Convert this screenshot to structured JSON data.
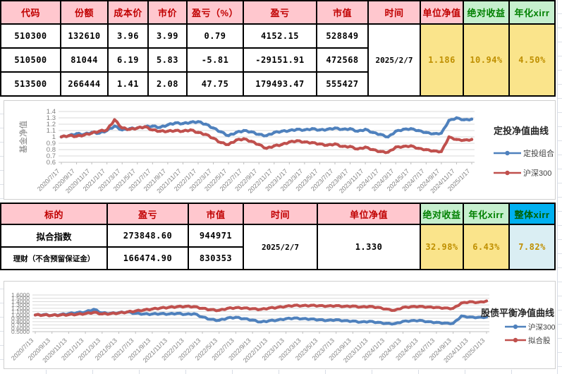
{
  "colors": {
    "header_pink_bg": "#FFC7CE",
    "header_red_text": "#C00000",
    "header_green_bg": "#C6EFCE",
    "header_green_text": "#008000",
    "header_blue_bg": "#00B0F0",
    "value_yellow_bg": "#FAE48B",
    "value_gold_text": "#BF8F00",
    "value_blue_bg": "#DAEEF3",
    "chart_blue": "#4F81BD",
    "chart_red": "#C0504D",
    "axis_text": "#7F7F7F",
    "grid_line": "#D9D9D9"
  },
  "table1": {
    "headers": [
      "代码",
      "份额",
      "成本价",
      "市价",
      "盈亏（%）",
      "盈亏",
      "市值",
      "时间",
      "单位净值",
      "绝对收益",
      "年化xirr"
    ],
    "rows": [
      [
        "510300",
        "132610",
        "3.96",
        "3.99",
        "0.79",
        "4152.15",
        "528849"
      ],
      [
        "510500",
        "81044",
        "6.19",
        "5.83",
        "-5.81",
        "-29151.91",
        "472568"
      ],
      [
        "513500",
        "266444",
        "1.41",
        "2.08",
        "47.75",
        "179493.47",
        "555427"
      ]
    ],
    "time": "2025/2/7",
    "unit_nav": "1.186",
    "abs_return": "10.94%",
    "annual_xirr": "4.50%"
  },
  "table2": {
    "headers": [
      "标的",
      "盈亏",
      "市值",
      "时间",
      "单位净值",
      "绝对收益",
      "年化xirr",
      "整体xirr"
    ],
    "rows": [
      [
        "拟合指数",
        "273848.60",
        "944971"
      ],
      [
        "理财（不含预留保证金）",
        "166474.90",
        "830353"
      ]
    ],
    "time": "2025/2/7",
    "unit_nav": "1.330",
    "abs_return": "32.98%",
    "annual_xirr": "6.43%",
    "overall_xirr": "7.82%"
  },
  "chart_data": [
    {
      "type": "line",
      "title": "定投净值曲线",
      "ylabel": "基金净值",
      "ylim": [
        0.6,
        1.4
      ],
      "grid": "on",
      "legend_position": "right",
      "yticks": [
        "1.4",
        "1.3",
        "1.2",
        "1.1",
        "1",
        "0.9",
        "0.8",
        "0.7",
        "0.6"
      ],
      "x_tick_labels": [
        "2020/7/17",
        "2020/9/17",
        "2020/11/17",
        "2021/1/17",
        "2021/3/17",
        "2021/5/17",
        "2021/7/17",
        "2021/9/17",
        "2021/11/17",
        "2022/1/17",
        "2022/3/17",
        "2022/5/17",
        "2022/7/17",
        "2022/9/17",
        "2022/11/17",
        "2023/1/17",
        "2023/3/17",
        "2023/5/17",
        "2023/7/17",
        "2023/9/17",
        "2023/11/17",
        "2024/1/17",
        "2024/3/17",
        "2024/5/17",
        "2024/7/17",
        "2024/9/17",
        "2024/11/17",
        "2025/1/17"
      ],
      "categories": [
        "2020/7",
        "2020/8",
        "2020/9",
        "2020/10",
        "2020/11",
        "2020/12",
        "2021/1",
        "2021/2",
        "2021/3",
        "2021/4",
        "2021/5",
        "2021/6",
        "2021/7",
        "2021/8",
        "2021/9",
        "2021/10",
        "2021/11",
        "2021/12",
        "2022/1",
        "2022/2",
        "2022/3",
        "2022/4",
        "2022/5",
        "2022/6",
        "2022/7",
        "2022/8",
        "2022/9",
        "2022/10",
        "2022/11",
        "2022/12",
        "2023/1",
        "2023/2",
        "2023/3",
        "2023/4",
        "2023/5",
        "2023/6",
        "2023/7",
        "2023/8",
        "2023/9",
        "2023/10",
        "2023/11",
        "2023/12",
        "2024/1",
        "2024/2",
        "2024/3",
        "2024/4",
        "2024/5",
        "2024/6",
        "2024/7",
        "2024/8",
        "2024/9",
        "2024/10",
        "2024/11",
        "2024/12",
        "2025/1"
      ],
      "series": [
        {
          "name": "定投组合",
          "color_key": "chart_blue",
          "values": [
            1.0,
            1.02,
            1.05,
            1.04,
            1.07,
            1.06,
            1.1,
            1.17,
            1.11,
            1.13,
            1.14,
            1.16,
            1.17,
            1.15,
            1.19,
            1.22,
            1.21,
            1.23,
            1.24,
            1.2,
            1.14,
            1.08,
            1.02,
            1.07,
            1.1,
            1.08,
            1.04,
            1.02,
            1.07,
            1.09,
            1.1,
            1.12,
            1.11,
            1.13,
            1.11,
            1.12,
            1.14,
            1.12,
            1.13,
            1.09,
            1.12,
            1.07,
            1.04,
            1.0,
            1.09,
            1.12,
            1.13,
            1.1,
            1.07,
            1.05,
            1.06,
            1.26,
            1.3,
            1.27,
            1.28
          ]
        },
        {
          "name": "沪深300",
          "color_key": "chart_red",
          "values": [
            1.0,
            1.02,
            1.01,
            1.03,
            1.06,
            1.09,
            1.11,
            1.27,
            1.14,
            1.12,
            1.14,
            1.16,
            1.11,
            1.09,
            1.09,
            1.1,
            1.09,
            1.11,
            1.07,
            1.04,
            0.98,
            0.91,
            0.88,
            0.95,
            0.97,
            0.93,
            0.88,
            0.82,
            0.86,
            0.88,
            0.92,
            0.94,
            0.92,
            0.91,
            0.89,
            0.87,
            0.89,
            0.85,
            0.85,
            0.81,
            0.84,
            0.8,
            0.77,
            0.76,
            0.84,
            0.85,
            0.86,
            0.82,
            0.8,
            0.78,
            0.77,
            1.0,
            0.96,
            0.95,
            0.96
          ]
        }
      ]
    },
    {
      "type": "line",
      "title": "股债平衡净值曲线",
      "ylabel": "",
      "ylim": [
        0.5,
        1.6
      ],
      "grid": "on",
      "legend_position": "right",
      "yticks": [
        "1.6000",
        "1.5000",
        "1.4000",
        "1.3000",
        "1.2000",
        "1.1000",
        "1.0000",
        "0.9000",
        "0.8000",
        "0.7000",
        "0.6000",
        "0.5000"
      ],
      "x_tick_labels": [
        "2020/7/13",
        "2020/9/13",
        "2020/11/13",
        "2021/1/13",
        "2021/3/13",
        "2021/5/13",
        "2021/7/13",
        "2021/9/13",
        "2021/11/13",
        "2022/1/13",
        "2022/3/13",
        "2022/5/13",
        "2022/7/13",
        "2022/9/13",
        "2022/11/13",
        "2023/1/13",
        "2023/3/13",
        "2023/5/13",
        "2023/7/13",
        "2023/9/13",
        "2023/11/13",
        "2024/1/13",
        "2024/3/13",
        "2024/5/13",
        "2024/7/13",
        "2024/9/13",
        "2024/11/13",
        "2025/1/13"
      ],
      "categories": [
        "2020/7",
        "2020/8",
        "2020/9",
        "2020/10",
        "2020/11",
        "2020/12",
        "2021/1",
        "2021/2",
        "2021/3",
        "2021/4",
        "2021/5",
        "2021/6",
        "2021/7",
        "2021/8",
        "2021/9",
        "2021/10",
        "2021/11",
        "2021/12",
        "2022/1",
        "2022/2",
        "2022/3",
        "2022/4",
        "2022/5",
        "2022/6",
        "2022/7",
        "2022/8",
        "2022/9",
        "2022/10",
        "2022/11",
        "2022/12",
        "2023/1",
        "2023/2",
        "2023/3",
        "2023/4",
        "2023/5",
        "2023/6",
        "2023/7",
        "2023/8",
        "2023/9",
        "2023/10",
        "2023/11",
        "2023/12",
        "2024/1",
        "2024/2",
        "2024/3",
        "2024/4",
        "2024/5",
        "2024/6",
        "2024/7",
        "2024/8",
        "2024/9",
        "2024/10",
        "2024/11",
        "2024/12",
        "2025/1"
      ],
      "series": [
        {
          "name": "沪深300",
          "color_key": "chart_blue",
          "values": [
            1.0,
            1.01,
            0.99,
            1.01,
            1.04,
            1.07,
            1.09,
            1.17,
            1.06,
            1.05,
            1.07,
            1.09,
            1.05,
            1.03,
            1.03,
            1.04,
            1.03,
            1.05,
            1.02,
            1.04,
            0.94,
            0.87,
            0.84,
            0.91,
            0.93,
            0.89,
            0.85,
            0.79,
            0.83,
            0.85,
            0.89,
            0.91,
            0.89,
            0.88,
            0.86,
            0.84,
            0.86,
            0.83,
            0.82,
            0.79,
            0.81,
            0.78,
            0.75,
            0.74,
            0.81,
            0.83,
            0.84,
            0.8,
            0.78,
            0.76,
            0.75,
            0.97,
            0.94,
            0.93,
            0.94
          ]
        },
        {
          "name": "拟合股",
          "color_key": "chart_red",
          "values": [
            1.0,
            1.0,
            0.99,
            1.0,
            1.01,
            1.02,
            1.04,
            1.08,
            1.03,
            1.04,
            1.06,
            1.09,
            1.12,
            1.15,
            1.18,
            1.21,
            1.23,
            1.25,
            1.26,
            1.25,
            1.2,
            1.16,
            1.14,
            1.2,
            1.22,
            1.21,
            1.19,
            1.17,
            1.21,
            1.23,
            1.26,
            1.29,
            1.28,
            1.29,
            1.28,
            1.27,
            1.28,
            1.26,
            1.27,
            1.24,
            1.26,
            1.23,
            1.18,
            1.14,
            1.23,
            1.25,
            1.26,
            1.24,
            1.23,
            1.21,
            1.2,
            1.36,
            1.4,
            1.38,
            1.42
          ]
        }
      ]
    }
  ]
}
